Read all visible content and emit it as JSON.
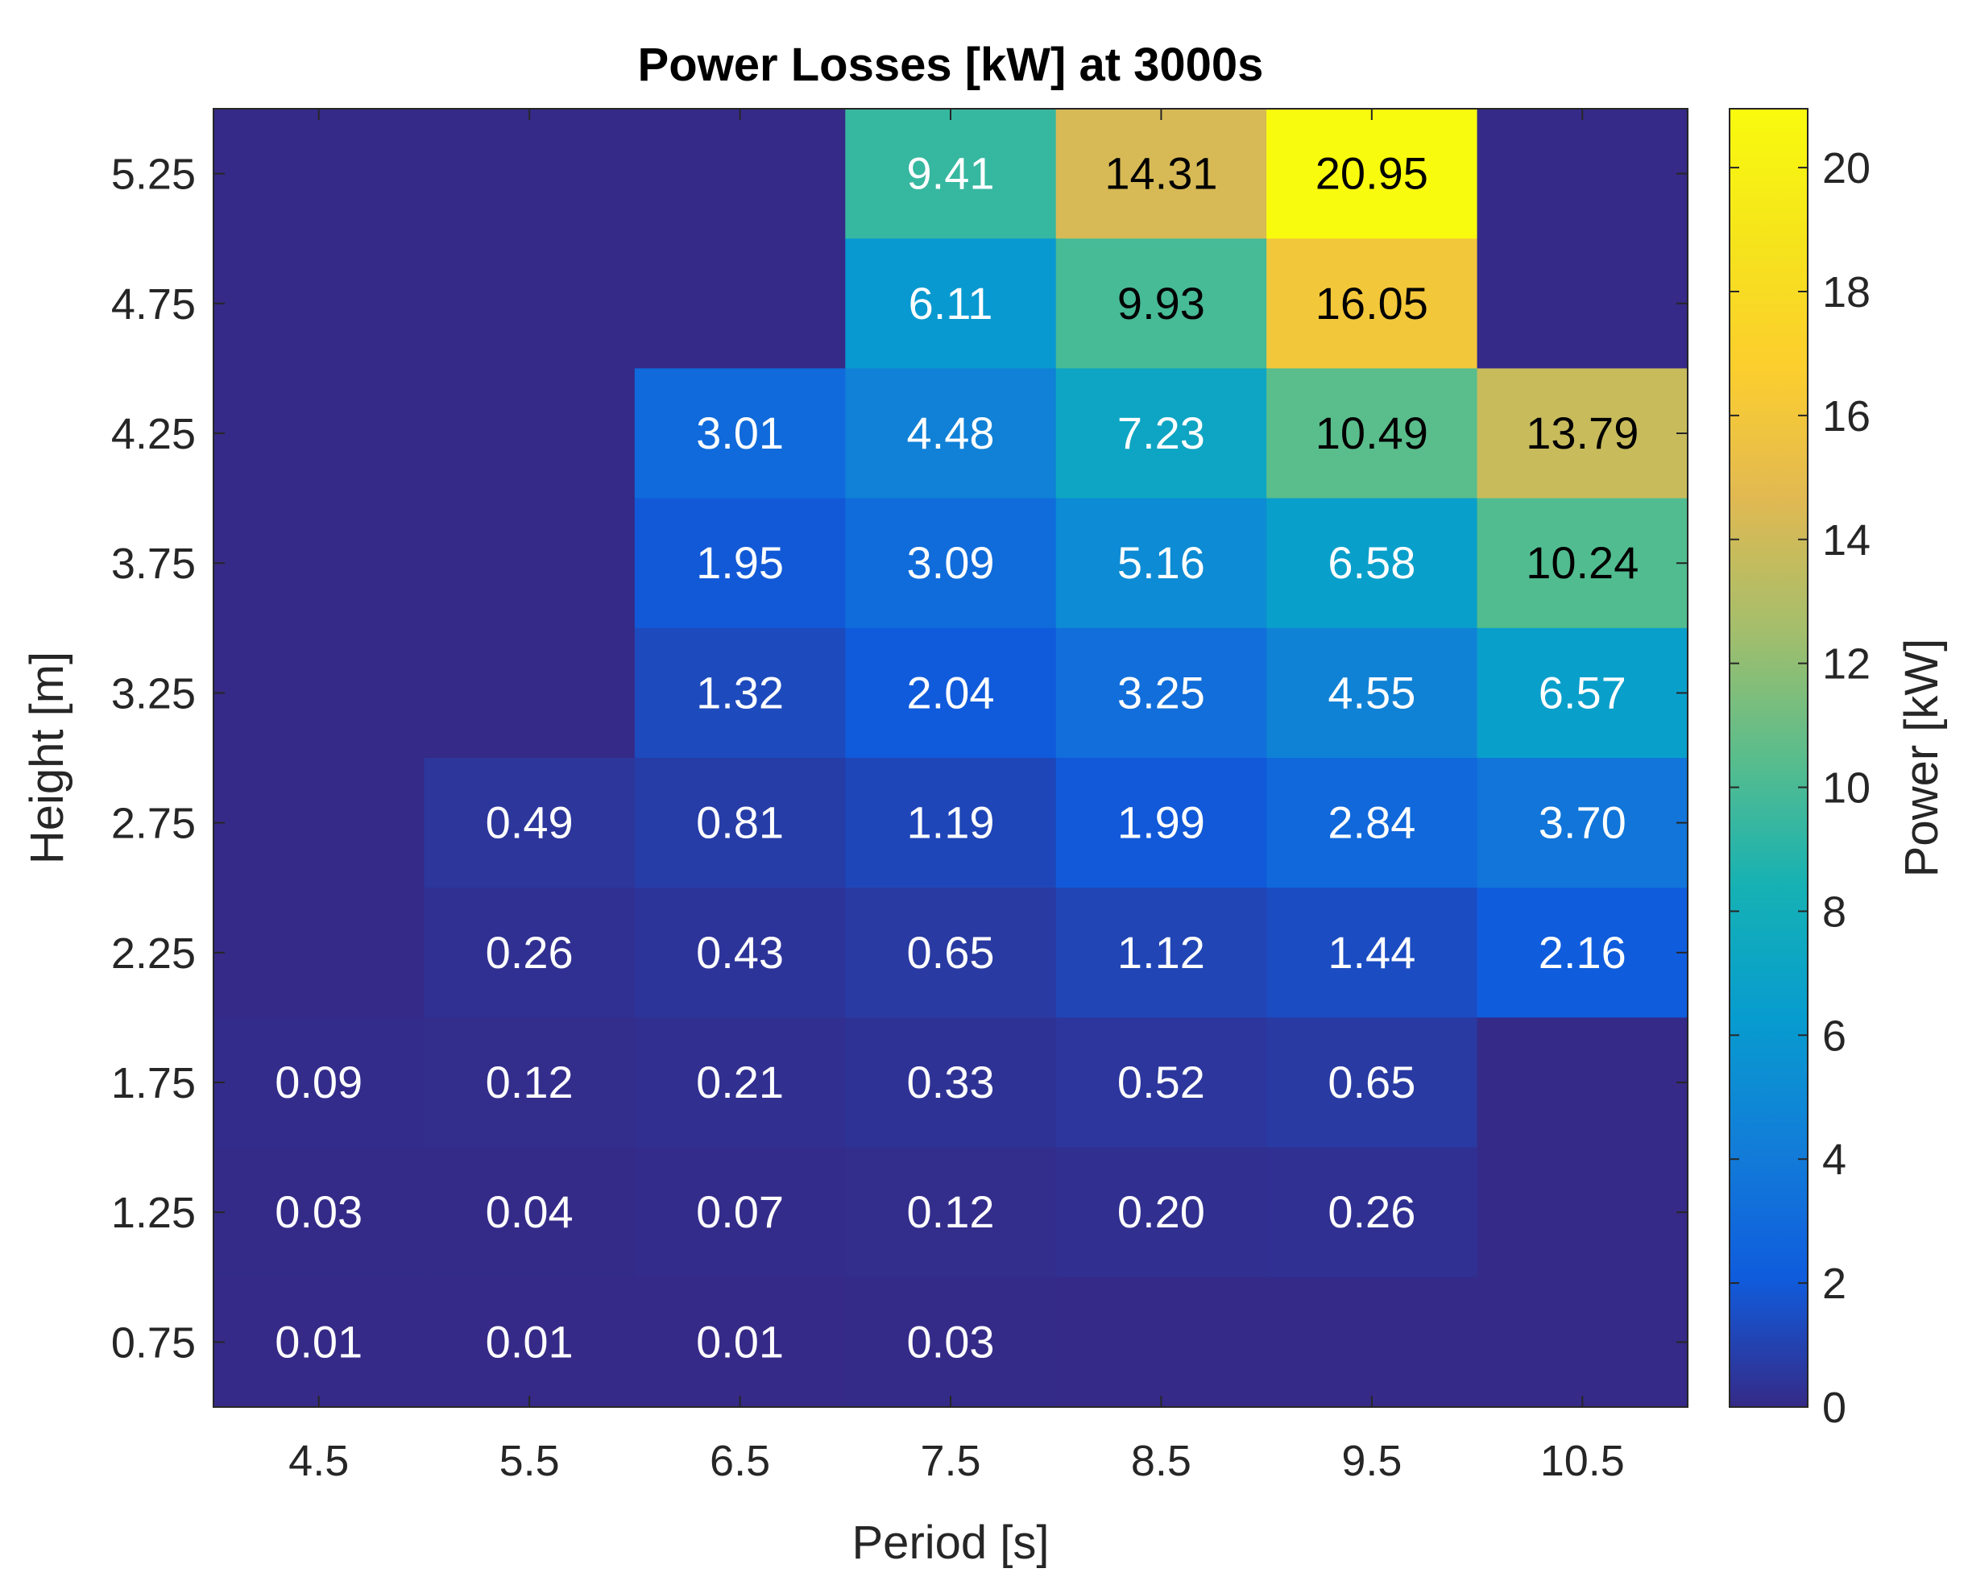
{
  "chart_data": {
    "type": "heatmap",
    "title": "Power Losses [kW] at 3000s",
    "xlabel": "Period [s]",
    "ylabel": "Height [m]",
    "colorbar_label": "Power [kW]",
    "colormap": "parula",
    "x": [
      "4.5",
      "5.5",
      "6.5",
      "7.5",
      "8.5",
      "9.5",
      "10.5"
    ],
    "y": [
      "5.25",
      "4.75",
      "4.25",
      "3.75",
      "3.25",
      "2.75",
      "2.25",
      "1.75",
      "1.25",
      "0.75"
    ],
    "values": [
      [
        null,
        null,
        null,
        9.41,
        14.31,
        20.95,
        null
      ],
      [
        null,
        null,
        null,
        6.11,
        9.93,
        16.05,
        null
      ],
      [
        null,
        null,
        3.01,
        4.48,
        7.23,
        10.49,
        13.79
      ],
      [
        null,
        null,
        1.95,
        3.09,
        5.16,
        6.58,
        10.24
      ],
      [
        null,
        null,
        1.32,
        2.04,
        3.25,
        4.55,
        6.57
      ],
      [
        null,
        0.49,
        0.81,
        1.19,
        1.99,
        2.84,
        3.7
      ],
      [
        null,
        0.26,
        0.43,
        0.65,
        1.12,
        1.44,
        2.16
      ],
      [
        0.09,
        0.12,
        0.21,
        0.33,
        0.52,
        0.65,
        null
      ],
      [
        0.03,
        0.04,
        0.07,
        0.12,
        0.2,
        0.26,
        null
      ],
      [
        0.01,
        0.01,
        0.01,
        0.03,
        null,
        null,
        null
      ]
    ],
    "labels": [
      [
        "",
        "",
        "",
        "9.41",
        "14.31",
        "20.95",
        ""
      ],
      [
        "",
        "",
        "",
        "6.11",
        "9.93",
        "16.05",
        ""
      ],
      [
        "",
        "",
        "3.01",
        "4.48",
        "7.23",
        "10.49",
        "13.79"
      ],
      [
        "",
        "",
        "1.95",
        "3.09",
        "5.16",
        "6.58",
        "10.24"
      ],
      [
        "",
        "",
        "1.32",
        "2.04",
        "3.25",
        "4.55",
        "6.57"
      ],
      [
        "",
        "0.49",
        "0.81",
        "1.19",
        "1.99",
        "2.84",
        "3.70"
      ],
      [
        "",
        "0.26",
        "0.43",
        "0.65",
        "1.12",
        "1.44",
        "2.16"
      ],
      [
        "0.09",
        "0.12",
        "0.21",
        "0.33",
        "0.52",
        "0.65",
        ""
      ],
      [
        "0.03",
        "0.04",
        "0.07",
        "0.12",
        "0.20",
        "0.26",
        ""
      ],
      [
        "0.01",
        "0.01",
        "0.01",
        "0.03",
        "",
        "",
        ""
      ]
    ],
    "color_range": [
      0,
      20.95
    ],
    "colorbar_ticks": [
      "0",
      "2",
      "4",
      "6",
      "8",
      "10",
      "12",
      "14",
      "16",
      "18",
      "20"
    ],
    "grid": false,
    "colors": {
      "background_cell": "#352a87",
      "text_light": "#ffffff",
      "text_dark": "#000000"
    }
  }
}
